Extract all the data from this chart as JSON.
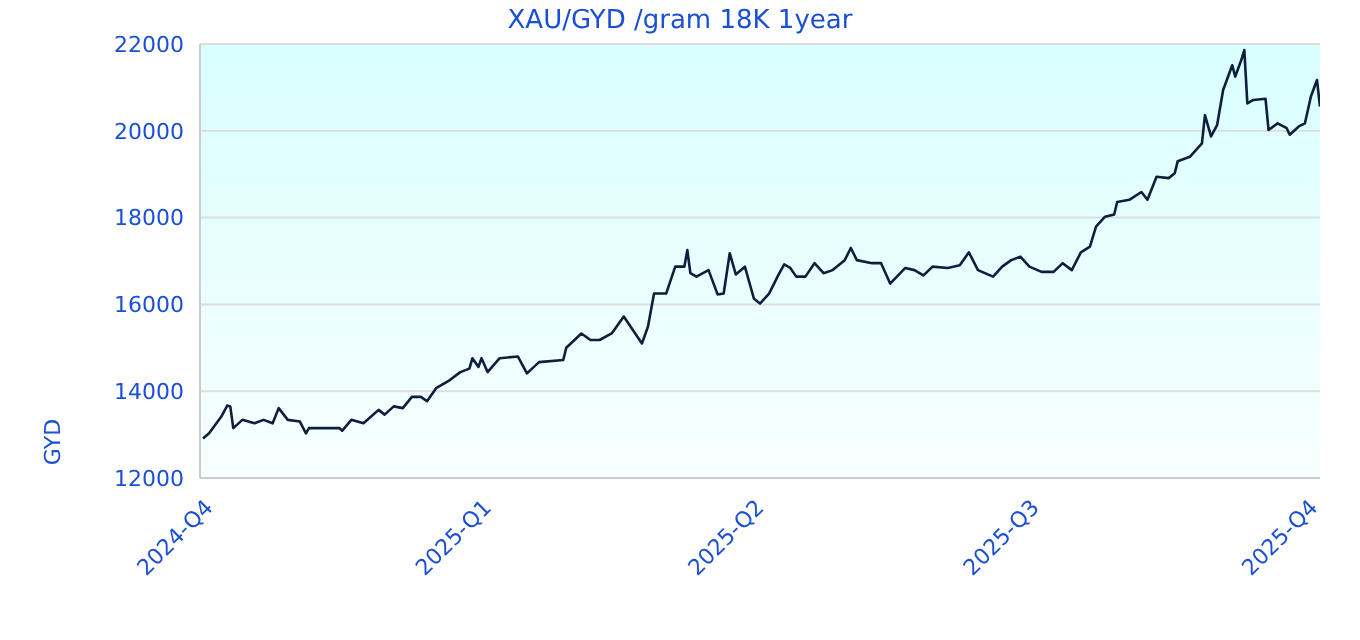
{
  "chart_data": {
    "type": "line",
    "title": "XAU/GYD /gram 18K 1year",
    "ylabel": "GYD",
    "x": [
      "2024-10-02",
      "2024-10-04",
      "2024-10-08",
      "2024-10-10",
      "2024-10-11",
      "2024-10-12",
      "2024-10-15",
      "2024-10-19",
      "2024-10-22",
      "2024-10-25",
      "2024-10-27",
      "2024-10-30",
      "2024-11-03",
      "2024-11-05",
      "2024-11-06",
      "2024-11-16",
      "2024-11-17",
      "2024-11-20",
      "2024-11-24",
      "2024-11-29",
      "2024-12-01",
      "2024-12-04",
      "2024-12-07",
      "2024-12-10",
      "2024-12-13",
      "2024-12-15",
      "2024-12-18",
      "2024-12-22",
      "2024-12-26",
      "2024-12-29",
      "2024-12-30",
      "2025-01-01",
      "2025-01-02",
      "2025-01-04",
      "2025-01-08",
      "2025-01-14",
      "2025-01-17",
      "2025-01-21",
      "2025-01-29",
      "2025-01-30",
      "2025-02-04",
      "2025-02-07",
      "2025-02-10",
      "2025-02-14",
      "2025-02-18",
      "2025-02-21",
      "2025-02-24",
      "2025-02-26",
      "2025-02-28",
      "2025-03-04",
      "2025-03-07",
      "2025-03-10",
      "2025-03-11",
      "2025-03-12",
      "2025-03-14",
      "2025-03-18",
      "2025-03-21",
      "2025-03-23",
      "2025-03-25",
      "2025-03-27",
      "2025-03-30",
      "2025-04-02",
      "2025-04-04",
      "2025-04-07",
      "2025-04-10",
      "2025-04-12",
      "2025-04-14",
      "2025-04-16",
      "2025-04-19",
      "2025-04-22",
      "2025-04-25",
      "2025-04-28",
      "2025-05-02",
      "2025-05-04",
      "2025-05-06",
      "2025-05-11",
      "2025-05-14",
      "2025-05-17",
      "2025-05-22",
      "2025-05-25",
      "2025-05-28",
      "2025-05-31",
      "2025-06-05",
      "2025-06-09",
      "2025-06-12",
      "2025-06-15",
      "2025-06-20",
      "2025-06-23",
      "2025-06-26",
      "2025-06-29",
      "2025-07-02",
      "2025-07-06",
      "2025-07-10",
      "2025-07-13",
      "2025-07-16",
      "2025-07-19",
      "2025-07-22",
      "2025-07-24",
      "2025-07-27",
      "2025-07-30",
      "2025-07-31",
      "2025-08-04",
      "2025-08-08",
      "2025-08-10",
      "2025-08-13",
      "2025-08-17",
      "2025-08-19",
      "2025-08-20",
      "2025-08-24",
      "2025-08-28",
      "2025-08-29",
      "2025-08-31",
      "2025-09-02",
      "2025-09-04",
      "2025-09-07",
      "2025-09-08",
      "2025-09-10",
      "2025-09-11",
      "2025-09-12",
      "2025-09-14",
      "2025-09-18",
      "2025-09-19",
      "2025-09-22",
      "2025-09-25",
      "2025-09-26",
      "2025-09-29",
      "2025-10-01",
      "2025-10-03",
      "2025-10-05",
      "2025-10-06"
    ],
    "series": [
      {
        "color": "#0d1f3c",
        "values": [
          12910,
          13030,
          13410,
          13670,
          13650,
          13150,
          13340,
          13260,
          13340,
          13260,
          13610,
          13340,
          13300,
          13030,
          13150,
          13150,
          13090,
          13340,
          13260,
          13570,
          13460,
          13650,
          13610,
          13870,
          13870,
          13770,
          14070,
          14230,
          14440,
          14520,
          14760,
          14560,
          14760,
          14440,
          14760,
          14800,
          14410,
          14670,
          14720,
          15000,
          15330,
          15180,
          15180,
          15330,
          15720,
          15410,
          15100,
          15490,
          16250,
          16250,
          16870,
          16870,
          17250,
          16720,
          16640,
          16790,
          16230,
          16250,
          17180,
          16690,
          16870,
          16130,
          16020,
          16250,
          16670,
          16920,
          16840,
          16640,
          16640,
          16950,
          16720,
          16790,
          17020,
          17300,
          17020,
          16950,
          16950,
          16480,
          16840,
          16790,
          16670,
          16870,
          16840,
          16900,
          17200,
          16790,
          16640,
          16870,
          17020,
          17100,
          16870,
          16750,
          16750,
          16950,
          16790,
          17200,
          17330,
          17790,
          18020,
          18070,
          18360,
          18410,
          18590,
          18410,
          18940,
          18910,
          19020,
          19300,
          19400,
          19710,
          20360,
          19870,
          20130,
          20940,
          21510,
          21250,
          21630,
          21860,
          20630,
          20710,
          20740,
          20020,
          20170,
          20060,
          19910,
          20100,
          20170,
          20790,
          21170,
          20560
        ]
      }
    ],
    "xlim": [
      "2024-10-01",
      "2025-10-06"
    ],
    "xticks": [
      {
        "value": "2024-10-01",
        "label": "2024-Q4"
      },
      {
        "value": "2025-01-01",
        "label": "2025-Q1"
      },
      {
        "value": "2025-04-01",
        "label": "2025-Q2"
      },
      {
        "value": "2025-07-01",
        "label": "2025-Q3"
      },
      {
        "value": "2025-10-01",
        "label": "2025-Q4"
      }
    ],
    "ylim": [
      12000,
      22000
    ],
    "yticks": [
      12000,
      14000,
      16000,
      18000,
      20000,
      22000
    ],
    "grid": "y",
    "marker": "none",
    "line_style": "solid"
  }
}
